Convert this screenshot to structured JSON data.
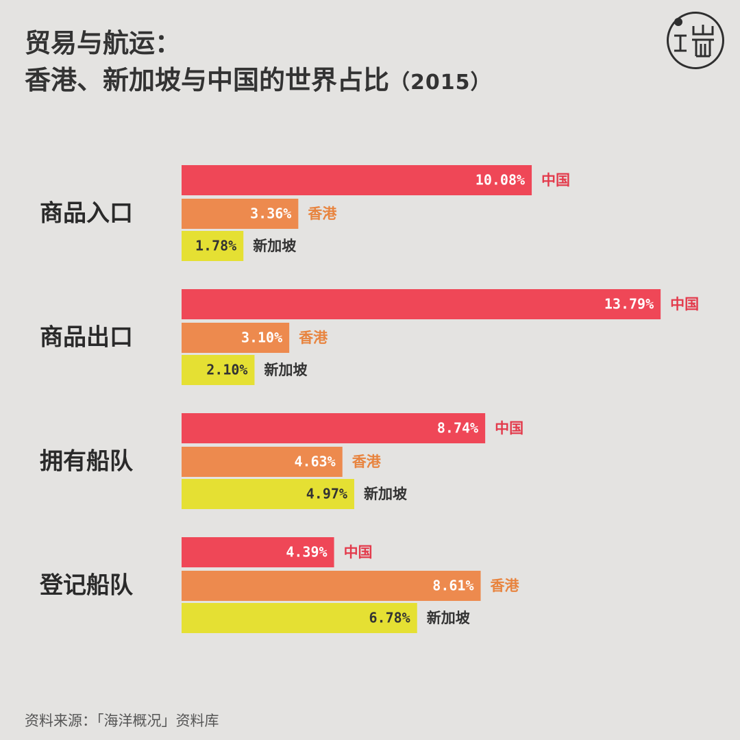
{
  "title_line1": "贸易与航运：",
  "title_line2": "香港、新加坡与中国的世界占比",
  "title_year": "（2015）",
  "source": "资料来源：「海洋概况」资料库",
  "colors": {
    "中国": "#ef4757",
    "香港": "#ed8a4e",
    "新加坡": "#e5e033"
  },
  "label_colors": {
    "中国": "#e33a4b",
    "香港": "#e8843f",
    "新加坡": "#333333"
  },
  "chart_data": {
    "type": "bar",
    "orientation": "horizontal",
    "categories": [
      "商品入口",
      "商品出口",
      "拥有船队",
      "登记船队"
    ],
    "series": [
      {
        "name": "中国",
        "values": [
          10.08,
          13.79,
          8.74,
          4.39
        ]
      },
      {
        "name": "香港",
        "values": [
          3.36,
          3.1,
          4.63,
          8.61
        ]
      },
      {
        "name": "新加坡",
        "values": [
          1.78,
          2.1,
          4.97,
          6.78
        ]
      }
    ],
    "value_labels": [
      [
        "10.08%",
        "3.36%",
        "1.78%"
      ],
      [
        "13.79%",
        "3.10%",
        "2.10%"
      ],
      [
        "8.74%",
        "4.63%",
        "4.97%"
      ],
      [
        "4.39%",
        "8.61%",
        "6.78%"
      ]
    ],
    "unit": "%",
    "grid": false,
    "axes_visible": false,
    "legend": "inline"
  }
}
